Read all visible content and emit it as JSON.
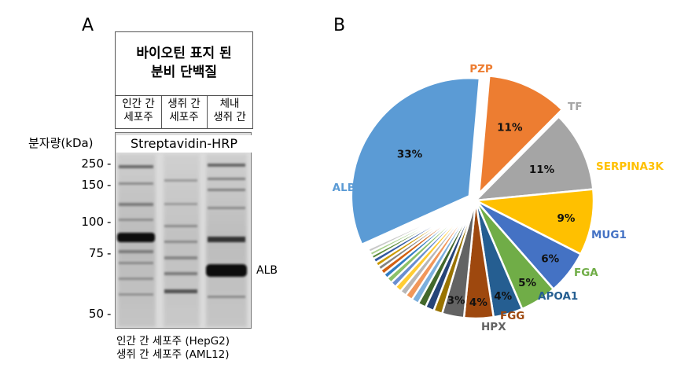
{
  "panel_a": {
    "letter": "A",
    "header_title_line1": "바이오틴 표지 된",
    "header_title_line2": "분비 단백질",
    "lanes": [
      {
        "line1": "인간 간",
        "line2": "세포주"
      },
      {
        "line1": "생쥐 간",
        "line2": "세포주"
      },
      {
        "line1": "체내",
        "line2": "생쥐 간"
      }
    ],
    "mw_label": "분자량(kDa)",
    "blot_label": "Streptavidin-HRP",
    "markers": [
      "250",
      "150",
      "100",
      "75",
      "50"
    ],
    "band_label": "ALB",
    "caption_line1": "인간 간 세포주 (HepG2)",
    "caption_line2": "생쥐 간 세포주 (AML12)"
  },
  "panel_b": {
    "letter": "B"
  },
  "chart_data": {
    "type": "pie",
    "slices": [
      {
        "label": "PZP",
        "value": 11,
        "value_label": "11%",
        "color": "#ED7D31",
        "label_color": "#ED7D31",
        "exploded": true
      },
      {
        "label": "TF",
        "value": 11,
        "value_label": "11%",
        "color": "#A5A5A5",
        "label_color": "#A5A5A5"
      },
      {
        "label": "SERPINA3K",
        "value": 9,
        "value_label": "9%",
        "color": "#FFC000",
        "label_color": "#FFC000"
      },
      {
        "label": "MUG1",
        "value": 6,
        "value_label": "6%",
        "color": "#4472C4",
        "label_color": "#4472C4"
      },
      {
        "label": "FGA",
        "value": 5,
        "value_label": "5%",
        "color": "#70AD47",
        "label_color": "#70AD47"
      },
      {
        "label": "APOA1",
        "value": 4,
        "value_label": "4%",
        "color": "#255E91",
        "label_color": "#255E91"
      },
      {
        "label": "FGG",
        "value": 4,
        "value_label": "4%",
        "color": "#9E480E",
        "label_color": "#9E480E"
      },
      {
        "label": "HPX",
        "value": 3,
        "value_label": "3%",
        "color": "#636363",
        "label_color": "#636363"
      },
      {
        "label": "",
        "value": 1.2,
        "color": "#997300"
      },
      {
        "label": "",
        "value": 1.2,
        "color": "#264478"
      },
      {
        "label": "",
        "value": 1.1,
        "color": "#43682B"
      },
      {
        "label": "",
        "value": 1.0,
        "color": "#7CAFDD"
      },
      {
        "label": "",
        "value": 1.0,
        "color": "#F1975A"
      },
      {
        "label": "",
        "value": 0.9,
        "color": "#B7B7B7"
      },
      {
        "label": "",
        "value": 0.9,
        "color": "#FFCD33"
      },
      {
        "label": "",
        "value": 0.8,
        "color": "#698ED0"
      },
      {
        "label": "",
        "value": 0.8,
        "color": "#8CC168"
      },
      {
        "label": "",
        "value": 0.7,
        "color": "#327DC2"
      },
      {
        "label": "",
        "value": 0.7,
        "color": "#D26012"
      },
      {
        "label": "",
        "value": 0.6,
        "color": "#848484"
      },
      {
        "label": "",
        "value": 0.6,
        "color": "#CC9A00"
      },
      {
        "label": "",
        "value": 0.6,
        "color": "#335AA1"
      },
      {
        "label": "",
        "value": 0.5,
        "color": "#5A8A39"
      },
      {
        "label": "",
        "value": 0.5,
        "color": "#A9D18E"
      },
      {
        "label": "",
        "value": 0.5,
        "color": "#C9C9C9"
      },
      {
        "label": "ALB",
        "value": 33,
        "value_label": "33%",
        "color": "#5B9BD5",
        "label_color": "#5B9BD5",
        "exploded": true
      }
    ],
    "start_angle_deg": 5,
    "direction": "clockwise"
  }
}
